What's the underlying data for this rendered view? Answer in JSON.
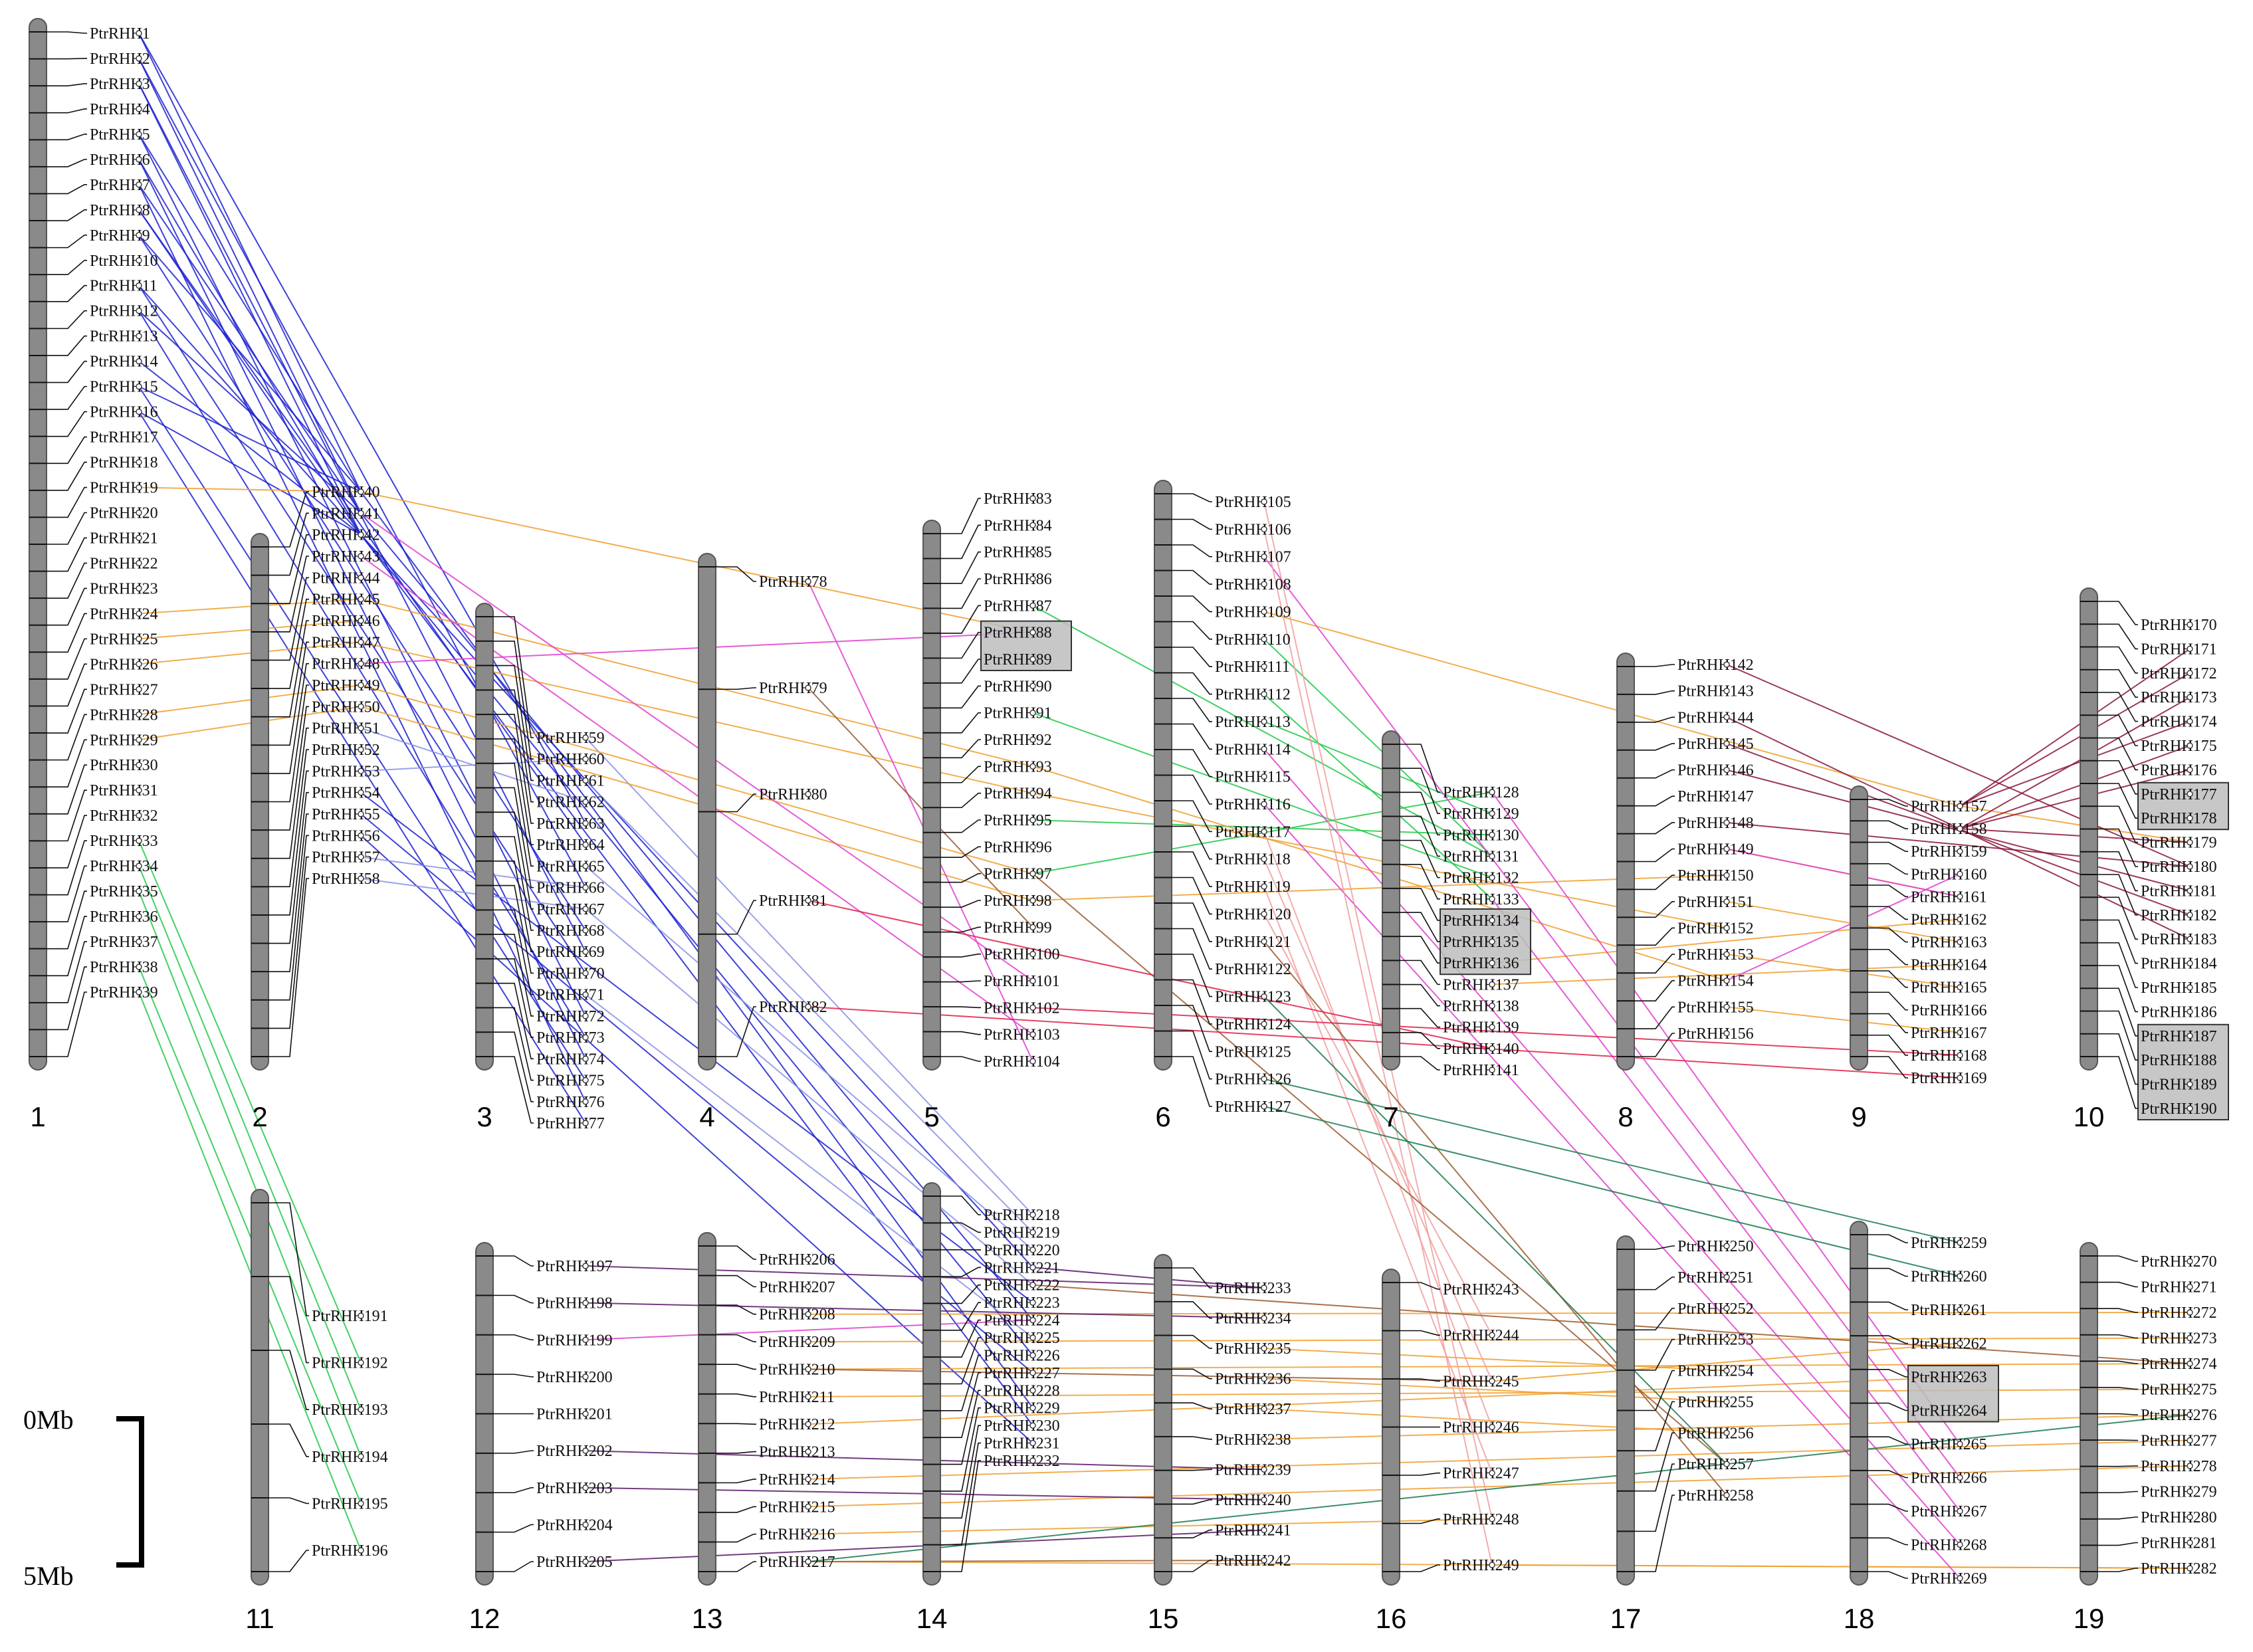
{
  "scale_bar": {
    "top_label": "0Mb",
    "bottom_label": "5Mb"
  },
  "colors": {
    "chromosome": "#8a8a8a",
    "link_palette": {
      "blue": "#1d22d0",
      "green": "#22c94a",
      "darkgreen": "#1a7a4e",
      "orange": "#f0a030",
      "magenta": "#e040d0",
      "pink": "#f0a0a0",
      "brown": "#9a5a30",
      "maroon": "#8a1838",
      "purple": "#5a1a6a",
      "red": "#e0204a",
      "lightblue": "#8a90e8"
    },
    "tandem_box": "#bdbdbd"
  },
  "chromosomes": [
    {
      "id": "1",
      "genes": [
        "PtrRHH1",
        "PtrRHH2",
        "PtrRHH3",
        "PtrRHH4",
        "PtrRHH5",
        "PtrRHH6",
        "PtrRHH7",
        "PtrRHH8",
        "PtrRHH9",
        "PtrRHH10",
        "PtrRHH11",
        "PtrRHH12",
        "PtrRHH13",
        "PtrRHH14",
        "PtrRHH15",
        "PtrRHH16",
        "PtrRHH17",
        "PtrRHH18",
        "PtrRHH19",
        "PtrRHH20",
        "PtrRHH21",
        "PtrRHH22",
        "PtrRHH23",
        "PtrRHH24",
        "PtrRHH25",
        "PtrRHH26",
        "PtrRHH27",
        "PtrRHH28",
        "PtrRHH29",
        "PtrRHH30",
        "PtrRHH31",
        "PtrRHH32",
        "PtrRHH33",
        "PtrRHH34",
        "PtrRHH35",
        "PtrRHH36",
        "PtrRHH37",
        "PtrRHH38",
        "PtrRHH39"
      ]
    },
    {
      "id": "2",
      "genes": [
        "PtrRHH40",
        "PtrRHH41",
        "PtrRHH42",
        "PtrRHH43",
        "PtrRHH44",
        "PtrRHH45",
        "PtrRHH46",
        "PtrRHH47",
        "PtrRHH48",
        "PtrRHH49",
        "PtrRHH50",
        "PtrRHH51",
        "PtrRHH52",
        "PtrRHH53",
        "PtrRHH54",
        "PtrRHH55",
        "PtrRHH56",
        "PtrRHH57",
        "PtrRHH58"
      ]
    },
    {
      "id": "3",
      "genes": [
        "PtrRHH59",
        "PtrRHH60",
        "PtrRHH61",
        "PtrRHH62",
        "PtrRHH63",
        "PtrRHH64",
        "PtrRHH65",
        "PtrRHH66",
        "PtrRHH67",
        "PtrRHH68",
        "PtrRHH69",
        "PtrRHH70",
        "PtrRHH71",
        "PtrRHH72",
        "PtrRHH73",
        "PtrRHH74",
        "PtrRHH75",
        "PtrRHH76",
        "PtrRHH77"
      ]
    },
    {
      "id": "4",
      "genes": [
        "PtrRHH78",
        "PtrRHH79",
        "PtrRHH80",
        "PtrRHH81",
        "PtrRHH82"
      ]
    },
    {
      "id": "5",
      "genes": [
        "PtrRHH83",
        "PtrRHH84",
        "PtrRHH85",
        "PtrRHH86",
        "PtrRHH87",
        "PtrRHH88",
        "PtrRHH89",
        "PtrRHH90",
        "PtrRHH91",
        "PtrRHH92",
        "PtrRHH93",
        "PtrRHH94",
        "PtrRHH95",
        "PtrRHH96",
        "PtrRHH97",
        "PtrRHH98",
        "PtrRHH99",
        "PtrRHH100",
        "PtrRHH101",
        "PtrRHH102",
        "PtrRHH103",
        "PtrRHH104"
      ]
    },
    {
      "id": "6",
      "genes": [
        "PtrRHH105",
        "PtrRHH106",
        "PtrRHH107",
        "PtrRHH108",
        "PtrRHH109",
        "PtrRHH110",
        "PtrRHH111",
        "PtrRHH112",
        "PtrRHH113",
        "PtrRHH114",
        "PtrRHH115",
        "PtrRHH116",
        "PtrRHH117",
        "PtrRHH118",
        "PtrRHH119",
        "PtrRHH120",
        "PtrRHH121",
        "PtrRHH122",
        "PtrRHH123",
        "PtrRHH124",
        "PtrRHH125",
        "PtrRHH126",
        "PtrRHH127"
      ]
    },
    {
      "id": "7",
      "genes": [
        "PtrRHH128",
        "PtrRHH129",
        "PtrRHH130",
        "PtrRHH131",
        "PtrRHH132",
        "PtrRHH133",
        "PtrRHH134",
        "PtrRHH135",
        "PtrRHH136",
        "PtrRHH137",
        "PtrRHH138",
        "PtrRHH139",
        "PtrRHH140",
        "PtrRHH141"
      ]
    },
    {
      "id": "8",
      "genes": [
        "PtrRHH142",
        "PtrRHH143",
        "PtrRHH144",
        "PtrRHH145",
        "PtrRHH146",
        "PtrRHH147",
        "PtrRHH148",
        "PtrRHH149",
        "PtrRHH150",
        "PtrRHH151",
        "PtrRHH152",
        "PtrRHH153",
        "PtrRHH154",
        "PtrRHH155",
        "PtrRHH156"
      ]
    },
    {
      "id": "9",
      "genes": [
        "PtrRHH157",
        "PtrRHH158",
        "PtrRHH159",
        "PtrRHH160",
        "PtrRHH161",
        "PtrRHH162",
        "PtrRHH163",
        "PtrRHH164",
        "PtrRHH165",
        "PtrRHH166",
        "PtrRHH167",
        "PtrRHH168",
        "PtrRHH169"
      ]
    },
    {
      "id": "10",
      "genes": [
        "PtrRHH170",
        "PtrRHH171",
        "PtrRHH172",
        "PtrRHH173",
        "PtrRHH174",
        "PtrRHH175",
        "PtrRHH176",
        "PtrRHH177",
        "PtrRHH178",
        "PtrRHH179",
        "PtrRHH180",
        "PtrRHH181",
        "PtrRHH182",
        "PtrRHH183",
        "PtrRHH184",
        "PtrRHH185",
        "PtrRHH186",
        "PtrRHH187",
        "PtrRHH188",
        "PtrRHH189",
        "PtrRHH190"
      ]
    },
    {
      "id": "11",
      "genes": [
        "PtrRHH191",
        "PtrRHH192",
        "PtrRHH193",
        "PtrRHH194",
        "PtrRHH195",
        "PtrRHH196"
      ]
    },
    {
      "id": "12",
      "genes": [
        "PtrRHH197",
        "PtrRHH198",
        "PtrRHH199",
        "PtrRHH200",
        "PtrRHH201",
        "PtrRHH202",
        "PtrRHH203",
        "PtrRHH204",
        "PtrRHH205"
      ]
    },
    {
      "id": "13",
      "genes": [
        "PtrRHH206",
        "PtrRHH207",
        "PtrRHH208",
        "PtrRHH209",
        "PtrRHH210",
        "PtrRHH211",
        "PtrRHH212",
        "PtrRHH213",
        "PtrRHH214",
        "PtrRHH215",
        "PtrRHH216",
        "PtrRHH217"
      ]
    },
    {
      "id": "14",
      "genes": [
        "PtrRHH218",
        "PtrRHH219",
        "PtrRHH220",
        "PtrRHH221",
        "PtrRHH222",
        "PtrRHH223",
        "PtrRHH224",
        "PtrRHH225",
        "PtrRHH226",
        "PtrRHH227",
        "PtrRHH228",
        "PtrRHH229",
        "PtrRHH230",
        "PtrRHH231",
        "PtrRHH232"
      ]
    },
    {
      "id": "15",
      "genes": [
        "PtrRHH233",
        "PtrRHH234",
        "PtrRHH235",
        "PtrRHH236",
        "PtrRHH237",
        "PtrRHH238",
        "PtrRHH239",
        "PtrRHH240",
        "PtrRHH241",
        "PtrRHH242"
      ]
    },
    {
      "id": "16",
      "genes": [
        "PtrRHH243",
        "PtrRHH244",
        "PtrRHH245",
        "PtrRHH246",
        "PtrRHH247",
        "PtrRHH248",
        "PtrRHH249"
      ]
    },
    {
      "id": "17",
      "genes": [
        "PtrRHH250",
        "PtrRHH251",
        "PtrRHH252",
        "PtrRHH253",
        "PtrRHH254",
        "PtrRHH255",
        "PtrRHH256",
        "PtrRHH257",
        "PtrRHH258"
      ]
    },
    {
      "id": "18",
      "genes": [
        "PtrRHH259",
        "PtrRHH260",
        "PtrRHH261",
        "PtrRHH262",
        "PtrRHH263",
        "PtrRHH264",
        "PtrRHH265",
        "PtrRHH266",
        "PtrRHH267",
        "PtrRHH268",
        "PtrRHH269"
      ]
    },
    {
      "id": "19",
      "genes": [
        "PtrRHH270",
        "PtrRHH271",
        "PtrRHH272",
        "PtrRHH273",
        "PtrRHH274",
        "PtrRHH275",
        "PtrRHH276",
        "PtrRHH277",
        "PtrRHH278",
        "PtrRHH279",
        "PtrRHH280",
        "PtrRHH281",
        "PtrRHH282"
      ]
    }
  ],
  "tandem_groups": [
    [
      "PtrRHH88",
      "PtrRHH89"
    ],
    [
      "PtrRHH134",
      "PtrRHH135",
      "PtrRHH136"
    ],
    [
      "PtrRHH177",
      "PtrRHH178"
    ],
    [
      "PtrRHH187",
      "PtrRHH188",
      "PtrRHH189",
      "PtrRHH190"
    ],
    [
      "PtrRHH263",
      "PtrRHH264"
    ]
  ],
  "links": [
    {
      "a": "PtrRHH1",
      "b": "PtrRHH40",
      "c": "blue"
    },
    {
      "a": "PtrRHH2",
      "b": "PtrRHH41",
      "c": "blue"
    },
    {
      "a": "PtrRHH3",
      "b": "PtrRHH42",
      "c": "blue"
    },
    {
      "a": "PtrRHH5",
      "b": "PtrRHH40",
      "c": "blue"
    },
    {
      "a": "PtrRHH6",
      "b": "PtrRHH42",
      "c": "blue"
    },
    {
      "a": "PtrRHH7",
      "b": "PtrRHH41",
      "c": "blue"
    },
    {
      "a": "PtrRHH8",
      "b": "PtrRHH42",
      "c": "blue"
    },
    {
      "a": "PtrRHH9",
      "b": "PtrRHH40",
      "c": "blue"
    },
    {
      "a": "PtrRHH11",
      "b": "PtrRHH42",
      "c": "blue"
    },
    {
      "a": "PtrRHH12",
      "b": "PtrRHH41",
      "c": "blue"
    },
    {
      "a": "PtrRHH14",
      "b": "PtrRHH42",
      "c": "blue"
    },
    {
      "a": "PtrRHH15",
      "b": "PtrRHH40",
      "c": "blue"
    },
    {
      "a": "PtrRHH16",
      "b": "PtrRHH42",
      "c": "blue"
    },
    {
      "a": "PtrRHH1",
      "b": "PtrRHH63",
      "c": "blue"
    },
    {
      "a": "PtrRHH2",
      "b": "PtrRHH66",
      "c": "blue"
    },
    {
      "a": "PtrRHH3",
      "b": "PtrRHH69",
      "c": "blue"
    },
    {
      "a": "PtrRHH5",
      "b": "PtrRHH72",
      "c": "blue"
    },
    {
      "a": "PtrRHH6",
      "b": "PtrRHH74",
      "c": "blue"
    },
    {
      "a": "PtrRHH7",
      "b": "PtrRHH76",
      "c": "blue"
    },
    {
      "a": "PtrRHH8",
      "b": "PtrRHH64",
      "c": "blue"
    },
    {
      "a": "PtrRHH9",
      "b": "PtrRHH68",
      "c": "blue"
    },
    {
      "a": "PtrRHH11",
      "b": "PtrRHH70",
      "c": "blue"
    },
    {
      "a": "PtrRHH12",
      "b": "PtrRHH73",
      "c": "blue"
    },
    {
      "a": "PtrRHH15",
      "b": "PtrRHH75",
      "c": "blue"
    },
    {
      "a": "PtrRHH16",
      "b": "PtrRHH77",
      "c": "blue"
    },
    {
      "a": "PtrRHH42",
      "b": "PtrRHH221",
      "c": "blue"
    },
    {
      "a": "PtrRHH41",
      "b": "PtrRHH224",
      "c": "blue"
    },
    {
      "a": "PtrRHH42",
      "b": "PtrRHH226",
      "c": "blue"
    },
    {
      "a": "PtrRHH40",
      "b": "PtrRHH229",
      "c": "blue"
    },
    {
      "a": "PtrRHH42",
      "b": "PtrRHH230",
      "c": "blue"
    },
    {
      "a": "PtrRHH54",
      "b": "PtrRHH223",
      "c": "blue"
    },
    {
      "a": "PtrRHH55",
      "b": "PtrRHH227",
      "c": "blue"
    },
    {
      "a": "PtrRHH56",
      "b": "PtrRHH231",
      "c": "blue"
    },
    {
      "a": "PtrRHH59",
      "b": "PtrRHH218",
      "c": "lightblue"
    },
    {
      "a": "PtrRHH61",
      "b": "PtrRHH219",
      "c": "lightblue"
    },
    {
      "a": "PtrRHH65",
      "b": "PtrRHH220",
      "c": "lightblue"
    },
    {
      "a": "PtrRHH67",
      "b": "PtrRHH222",
      "c": "lightblue"
    },
    {
      "a": "PtrRHH71",
      "b": "PtrRHH225",
      "c": "lightblue"
    },
    {
      "a": "PtrRHH51",
      "b": "PtrRHH62",
      "c": "lightblue"
    },
    {
      "a": "PtrRHH57",
      "b": "PtrRHH66",
      "c": "lightblue"
    },
    {
      "a": "PtrRHH58",
      "b": "PtrRHH67",
      "c": "lightblue"
    },
    {
      "a": "PtrRHH53",
      "b": "PtrRHH60",
      "c": "lightblue"
    },
    {
      "a": "PtrRHH33",
      "b": "PtrRHH192",
      "c": "green"
    },
    {
      "a": "PtrRHH34",
      "b": "PtrRHH193",
      "c": "green"
    },
    {
      "a": "PtrRHH35",
      "b": "PtrRHH194",
      "c": "green"
    },
    {
      "a": "PtrRHH38",
      "b": "PtrRHH195",
      "c": "green"
    },
    {
      "a": "PtrRHH39",
      "b": "PtrRHH196",
      "c": "green"
    },
    {
      "a": "PtrRHH87",
      "b": "PtrRHH131",
      "c": "green"
    },
    {
      "a": "PtrRHH91",
      "b": "PtrRHH132",
      "c": "green"
    },
    {
      "a": "PtrRHH95",
      "b": "PtrRHH130",
      "c": "green"
    },
    {
      "a": "PtrRHH97",
      "b": "PtrRHH128",
      "c": "green"
    },
    {
      "a": "PtrRHH110",
      "b": "PtrRHH131",
      "c": "green"
    },
    {
      "a": "PtrRHH112",
      "b": "PtrRHH133",
      "c": "green"
    },
    {
      "a": "PtrRHH113",
      "b": "PtrRHH129",
      "c": "green"
    },
    {
      "a": "PtrRHH19",
      "b": "PtrRHH40",
      "c": "orange"
    },
    {
      "a": "PtrRHH24",
      "b": "PtrRHH45",
      "c": "orange"
    },
    {
      "a": "PtrRHH25",
      "b": "PtrRHH46",
      "c": "orange"
    },
    {
      "a": "PtrRHH26",
      "b": "PtrRHH47",
      "c": "orange"
    },
    {
      "a": "PtrRHH28",
      "b": "PtrRHH49",
      "c": "orange"
    },
    {
      "a": "PtrRHH29",
      "b": "PtrRHH50",
      "c": "orange"
    },
    {
      "a": "PtrRHH40",
      "b": "PtrRHH88",
      "c": "orange"
    },
    {
      "a": "PtrRHH45",
      "b": "PtrRHH93",
      "c": "orange"
    },
    {
      "a": "PtrRHH47",
      "b": "PtrRHH94",
      "c": "orange"
    },
    {
      "a": "PtrRHH49",
      "b": "PtrRHH97",
      "c": "orange"
    },
    {
      "a": "PtrRHH50",
      "b": "PtrRHH98",
      "c": "orange"
    },
    {
      "a": "PtrRHH109",
      "b": "PtrRHH157",
      "c": "orange"
    },
    {
      "a": "PtrRHH98",
      "b": "PtrRHH150",
      "c": "orange"
    },
    {
      "a": "PtrRHH94",
      "b": "PtrRHH152",
      "c": "orange"
    },
    {
      "a": "PtrRHH93",
      "b": "PtrRHH154",
      "c": "orange"
    },
    {
      "a": "PtrRHH149",
      "b": "PtrRHH161",
      "c": "orange"
    },
    {
      "a": "PtrRHH151",
      "b": "PtrRHH163",
      "c": "orange"
    },
    {
      "a": "PtrRHH153",
      "b": "PtrRHH165",
      "c": "orange"
    },
    {
      "a": "PtrRHH155",
      "b": "PtrRHH167",
      "c": "orange"
    },
    {
      "a": "PtrRHH136",
      "b": "PtrRHH162",
      "c": "orange"
    },
    {
      "a": "PtrRHH137",
      "b": "PtrRHH164",
      "c": "orange"
    },
    {
      "a": "PtrRHH157",
      "b": "PtrRHH179",
      "c": "orange"
    },
    {
      "a": "PtrRHH208",
      "b": "PtrRHH272",
      "c": "orange"
    },
    {
      "a": "PtrRHH209",
      "b": "PtrRHH273",
      "c": "orange"
    },
    {
      "a": "PtrRHH210",
      "b": "PtrRHH274",
      "c": "orange"
    },
    {
      "a": "PtrRHH211",
      "b": "PtrRHH275",
      "c": "orange"
    },
    {
      "a": "PtrRHH212",
      "b": "PtrRHH263",
      "c": "orange"
    },
    {
      "a": "PtrRHH214",
      "b": "PtrRHH277",
      "c": "orange"
    },
    {
      "a": "PtrRHH215",
      "b": "PtrRHH278",
      "c": "orange"
    },
    {
      "a": "PtrRHH216",
      "b": "PtrRHH248",
      "c": "orange"
    },
    {
      "a": "PtrRHH217",
      "b": "PtrRHH282",
      "c": "orange"
    },
    {
      "a": "PtrRHH235",
      "b": "PtrRHH254",
      "c": "orange"
    },
    {
      "a": "PtrRHH236",
      "b": "PtrRHH255",
      "c": "orange"
    },
    {
      "a": "PtrRHH237",
      "b": "PtrRHH256",
      "c": "orange"
    },
    {
      "a": "PtrRHH245",
      "b": "PtrRHH262",
      "c": "orange"
    },
    {
      "a": "PtrRHH238",
      "b": "PtrRHH276",
      "c": "orange"
    },
    {
      "a": "PtrRHH249",
      "b": "PtrRHH282",
      "c": "orange"
    },
    {
      "a": "PtrRHH41",
      "b": "PtrRHH101",
      "c": "magenta"
    },
    {
      "a": "PtrRHH43",
      "b": "PtrRHH103",
      "c": "magenta"
    },
    {
      "a": "PtrRHH48",
      "b": "PtrRHH88",
      "c": "magenta"
    },
    {
      "a": "PtrRHH78",
      "b": "PtrRHH104",
      "c": "magenta"
    },
    {
      "a": "PtrRHH107",
      "b": "PtrRHH266",
      "c": "magenta"
    },
    {
      "a": "PtrRHH114",
      "b": "PtrRHH268",
      "c": "magenta"
    },
    {
      "a": "PtrRHH116",
      "b": "PtrRHH269",
      "c": "magenta"
    },
    {
      "a": "PtrRHH128",
      "b": "PtrRHH265",
      "c": "magenta"
    },
    {
      "a": "PtrRHH133",
      "b": "PtrRHH267",
      "c": "magenta"
    },
    {
      "a": "PtrRHH149",
      "b": "PtrRHH161",
      "c": "magenta"
    },
    {
      "a": "PtrRHH154",
      "b": "PtrRHH160",
      "c": "magenta"
    },
    {
      "a": "PtrRHH199",
      "b": "PtrRHH224",
      "c": "magenta"
    },
    {
      "a": "PtrRHH105",
      "b": "PtrRHH248",
      "c": "pink"
    },
    {
      "a": "PtrRHH106",
      "b": "PtrRHH249",
      "c": "pink"
    },
    {
      "a": "PtrRHH117",
      "b": "PtrRHH246",
      "c": "pink"
    },
    {
      "a": "PtrRHH118",
      "b": "PtrRHH245",
      "c": "pink"
    },
    {
      "a": "PtrRHH119",
      "b": "PtrRHH247",
      "c": "pink"
    },
    {
      "a": "PtrRHH120",
      "b": "PtrRHH244",
      "c": "pink"
    },
    {
      "a": "PtrRHH79",
      "b": "PtrRHH99",
      "c": "brown"
    },
    {
      "a": "PtrRHH97",
      "b": "PtrRHH257",
      "c": "brown"
    },
    {
      "a": "PtrRHH121",
      "b": "PtrRHH258",
      "c": "brown"
    },
    {
      "a": "PtrRHH217",
      "b": "PtrRHH242",
      "c": "brown"
    },
    {
      "a": "PtrRHH210",
      "b": "PtrRHH245",
      "c": "brown"
    },
    {
      "a": "PtrRHH222",
      "b": "PtrRHH274",
      "c": "brown"
    },
    {
      "a": "PtrRHH142",
      "b": "PtrRHH180",
      "c": "maroon"
    },
    {
      "a": "PtrRHH144",
      "b": "PtrRHH183",
      "c": "maroon"
    },
    {
      "a": "PtrRHH145",
      "b": "PtrRHH182",
      "c": "maroon"
    },
    {
      "a": "PtrRHH146",
      "b": "PtrRHH181",
      "c": "maroon"
    },
    {
      "a": "PtrRHH148",
      "b": "PtrRHH180",
      "c": "maroon"
    },
    {
      "a": "PtrRHH157",
      "b": "PtrRHH171",
      "c": "maroon"
    },
    {
      "a": "PtrRHH157",
      "b": "PtrRHH172",
      "c": "maroon"
    },
    {
      "a": "PtrRHH158",
      "b": "PtrRHH173",
      "c": "maroon"
    },
    {
      "a": "PtrRHH157",
      "b": "PtrRHH174",
      "c": "maroon"
    },
    {
      "a": "PtrRHH158",
      "b": "PtrRHH175",
      "c": "maroon"
    },
    {
      "a": "PtrRHH158",
      "b": "PtrRHH176",
      "c": "maroon"
    },
    {
      "a": "PtrRHH158",
      "b": "PtrRHH179",
      "c": "maroon"
    },
    {
      "a": "PtrRHH197",
      "b": "PtrRHH233",
      "c": "purple"
    },
    {
      "a": "PtrRHH198",
      "b": "PtrRHH234",
      "c": "purple"
    },
    {
      "a": "PtrRHH202",
      "b": "PtrRHH239",
      "c": "purple"
    },
    {
      "a": "PtrRHH203",
      "b": "PtrRHH240",
      "c": "purple"
    },
    {
      "a": "PtrRHH205",
      "b": "PtrRHH241",
      "c": "purple"
    },
    {
      "a": "PtrRHH221",
      "b": "PtrRHH233",
      "c": "purple"
    },
    {
      "a": "PtrRHH81",
      "b": "PtrRHH140",
      "c": "red"
    },
    {
      "a": "PtrRHH82",
      "b": "PtrRHH169",
      "c": "red"
    },
    {
      "a": "PtrRHH102",
      "b": "PtrRHH168",
      "c": "red"
    },
    {
      "a": "PtrRHH126",
      "b": "PtrRHH259",
      "c": "darkgreen"
    },
    {
      "a": "PtrRHH127",
      "b": "PtrRHH260",
      "c": "darkgreen"
    },
    {
      "a": "PtrRHH217",
      "b": "PtrRHH276",
      "c": "darkgreen"
    },
    {
      "a": "PtrRHH123",
      "b": "PtrRHH257",
      "c": "darkgreen"
    }
  ]
}
